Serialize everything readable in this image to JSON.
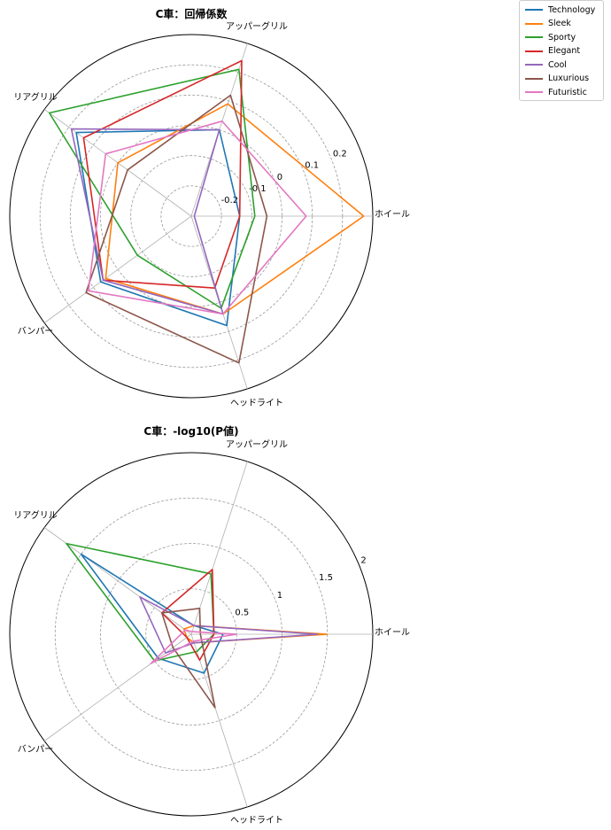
{
  "axes": [
    "ホイール",
    "アッパーグリル",
    "リアグリル",
    "バンパー",
    "ヘッドライト"
  ],
  "legend": [
    "Technology",
    "Sleek",
    "Sporty",
    "Elegant",
    "Cool",
    "Luxurious",
    "Futuristic"
  ],
  "colors": [
    "#1f77b4",
    "#ff7f0e",
    "#2ca02c",
    "#d62728",
    "#9467bd",
    "#8c564b",
    "#e377c2"
  ],
  "chart_data": [
    {
      "type": "radar",
      "title": "C車：回帰係数",
      "rlim": [
        -0.3,
        0.3
      ],
      "rticks": [
        -0.2,
        -0.1,
        0,
        0.1,
        0.2
      ],
      "rtick_labels": [
        "-0.2",
        "-0.1",
        "0",
        "0.1",
        "0.2"
      ],
      "series": [
        {
          "name": "Technology",
          "values": [
            -0.14,
            0.0,
            0.17,
            0.07,
            0.08
          ]
        },
        {
          "name": "Sleek",
          "values": [
            0.27,
            0.09,
            0.0,
            0.05,
            0.04
          ]
        },
        {
          "name": "Sporty",
          "values": [
            -0.09,
            0.21,
            0.28,
            -0.08,
            0.02
          ]
        },
        {
          "name": "Elegant",
          "values": [
            -0.14,
            0.24,
            0.14,
            0.06,
            -0.05
          ]
        },
        {
          "name": "Cool",
          "values": [
            -0.29,
            0.0,
            0.19,
            0.06,
            0.04
          ]
        },
        {
          "name": "Luxurious",
          "values": [
            -0.05,
            0.12,
            -0.04,
            0.13,
            0.21
          ]
        },
        {
          "name": "Futuristic",
          "values": [
            0.08,
            0.03,
            0.05,
            0.12,
            0.04
          ]
        }
      ]
    },
    {
      "type": "radar",
      "title": "C車：-log10(P値)",
      "rlim": [
        0,
        2.0
      ],
      "rticks": [
        0.5,
        1.0,
        1.5,
        2.0
      ],
      "rtick_labels": [
        "0.5",
        "1",
        "1.5",
        "2"
      ],
      "series": [
        {
          "name": "Technology",
          "values": [
            0.35,
            0.1,
            1.5,
            0.45,
            0.45
          ]
        },
        {
          "name": "Sleek",
          "values": [
            1.5,
            0.1,
            0.1,
            0.06,
            0.1
          ]
        },
        {
          "name": "Sporty",
          "values": [
            0.25,
            0.7,
            1.7,
            0.5,
            0.2
          ]
        },
        {
          "name": "Elegant",
          "values": [
            0.25,
            0.75,
            0.4,
            0.06,
            0.3
          ]
        },
        {
          "name": "Cool",
          "values": [
            1.4,
            0.1,
            0.7,
            0.35,
            0.1
          ]
        },
        {
          "name": "Luxurious",
          "values": [
            0.1,
            0.3,
            0.4,
            0.25,
            0.85
          ]
        },
        {
          "name": "Futuristic",
          "values": [
            0.5,
            0.03,
            0.08,
            0.55,
            0.08
          ]
        }
      ]
    }
  ]
}
